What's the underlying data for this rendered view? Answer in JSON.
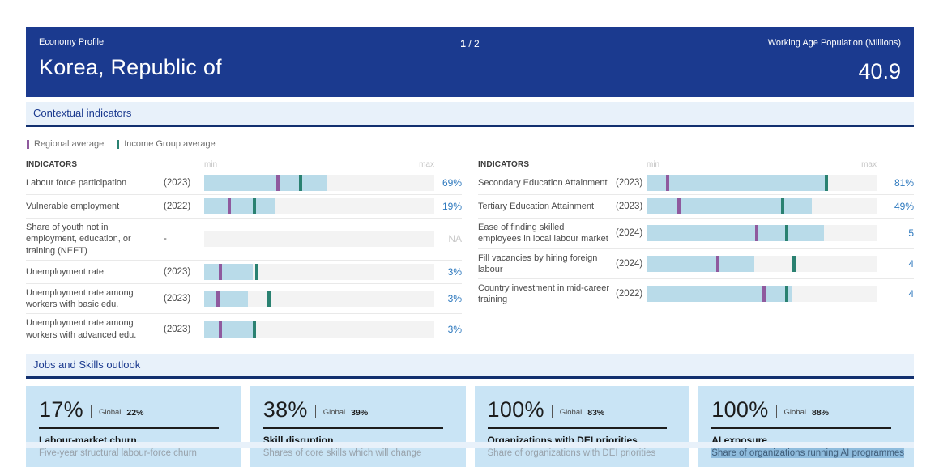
{
  "header": {
    "eyebrow": "Economy Profile",
    "title": "Korea, Republic of",
    "page": {
      "current": "1",
      "separator": "/",
      "total": "2"
    },
    "population_label": "Working Age Population (Millions)",
    "population_value": "40.9"
  },
  "section_contextual": {
    "title": "Contextual indicators"
  },
  "section_outlook": {
    "title": "Jobs and Skills outlook"
  },
  "legend": {
    "items": [
      {
        "label": "Regional average",
        "color": "#8f5a9e"
      },
      {
        "label": "Income Group average",
        "color": "#2a8171"
      }
    ]
  },
  "indicators": {
    "columns_header": {
      "label": "INDICATORS",
      "min": "min",
      "max": "max"
    },
    "left": {
      "rows": [
        {
          "label": "Labour force participation",
          "year": "(2023)",
          "value": "69%",
          "na": false,
          "fill_pct": 53,
          "regional_avg_pct": 32,
          "income_group_avg_pct": 42
        },
        {
          "label": "Vulnerable employment",
          "year": "(2022)",
          "value": "19%",
          "na": false,
          "fill_pct": 31,
          "regional_avg_pct": 11,
          "income_group_avg_pct": 22
        },
        {
          "label": "Share of youth not in employment, education, or training (NEET)",
          "year": "-",
          "value": "NA",
          "na": true,
          "fill_pct": 0,
          "regional_avg_pct": null,
          "income_group_avg_pct": null
        },
        {
          "label": "Unemployment rate",
          "year": "(2023)",
          "value": "3%",
          "na": false,
          "fill_pct": 21,
          "regional_avg_pct": 7,
          "income_group_avg_pct": 23
        },
        {
          "label": "Unemployment rate among workers with basic edu.",
          "year": "(2023)",
          "value": "3%",
          "na": false,
          "fill_pct": 19,
          "regional_avg_pct": 6,
          "income_group_avg_pct": 28
        },
        {
          "label": "Unemployment rate among workers with advanced edu.",
          "year": "(2023)",
          "value": "3%",
          "na": false,
          "fill_pct": 21,
          "regional_avg_pct": 7,
          "income_group_avg_pct": 22
        }
      ]
    },
    "right": {
      "rows": [
        {
          "label": "Secondary Education Attainment",
          "year": "(2023)",
          "value": "81%",
          "na": false,
          "fill_pct": 79,
          "regional_avg_pct": 9,
          "income_group_avg_pct": 78
        },
        {
          "label": "Tertiary Education Attainment",
          "year": "(2023)",
          "value": "49%",
          "na": false,
          "fill_pct": 72,
          "regional_avg_pct": 14,
          "income_group_avg_pct": 59
        },
        {
          "label": "Ease of finding skilled employees in local labour market",
          "year": "(2024)",
          "value": "5",
          "na": false,
          "fill_pct": 77,
          "regional_avg_pct": 48,
          "income_group_avg_pct": 61
        },
        {
          "label": "Fill vacancies by hiring foreign labour",
          "year": "(2024)",
          "value": "4",
          "na": false,
          "fill_pct": 47,
          "regional_avg_pct": 31,
          "income_group_avg_pct": 64
        },
        {
          "label": "Country investment in mid-career training",
          "year": "(2022)",
          "value": "4",
          "na": false,
          "fill_pct": 63,
          "regional_avg_pct": 51,
          "income_group_avg_pct": 61
        }
      ]
    }
  },
  "cards": [
    {
      "value": "17%",
      "global_label": "Global",
      "global_value": "22%",
      "title": "Labour-market churn",
      "subtitle": "Five-year structural labour-force churn",
      "subtitle_highlighted": false
    },
    {
      "value": "38%",
      "global_label": "Global",
      "global_value": "39%",
      "title": "Skill disruption",
      "subtitle": "Shares of core skills which will change",
      "subtitle_highlighted": false
    },
    {
      "value": "100%",
      "global_label": "Global",
      "global_value": "83%",
      "title": "Organizations with DEI priorities",
      "subtitle": "Share of organizations with DEI priorities",
      "subtitle_highlighted": false
    },
    {
      "value": "100%",
      "global_label": "Global",
      "global_value": "88%",
      "title": "AI exposure",
      "subtitle": "Share of organizations running AI programmes",
      "subtitle_highlighted": true
    }
  ],
  "colors": {
    "header_navy": "#1b3a8f",
    "section_bg": "#e8f1fa",
    "section_border": "#12306f",
    "bar_fill": "#b9dbe9",
    "bar_track": "#f3f3f3",
    "regional_tick": "#8f5a9e",
    "income_group_tick": "#2a8171",
    "value_blue": "#2e79be",
    "card_bg": "#c9e4f5",
    "selection_highlight": "#8fbcdd"
  }
}
